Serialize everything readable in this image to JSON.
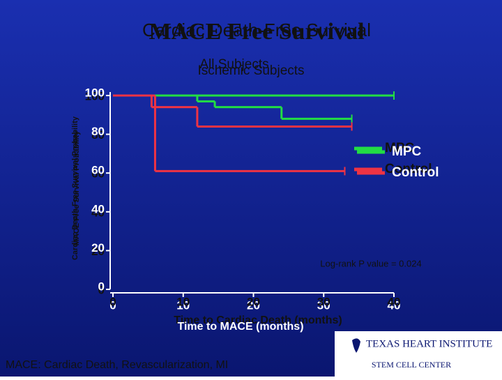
{
  "chart_data": {
    "type": "step",
    "title": "MACE Free Survival",
    "title_alt": "Cardiac Death-Free Survival",
    "subtitle": "All Subjects",
    "subtitle_alt": "Ischemic Subjects",
    "ylabel": "MACE Free Survival Probability",
    "ylabel_alt": "Cardiac Death Free Survival Probability",
    "xlabel": "Time to MACE (months)",
    "xlabel_alt": "Time to Cardiac Death (months)",
    "annotation": "Log-rank P value = 0.024",
    "footnote": "MACE: Cardiac Death, Revascularization, MI",
    "logo": "TEXAS HEART INSTITUTE",
    "logo_sub": "STEM CELL CENTER",
    "xlim": [
      0,
      40
    ],
    "xticks": [
      0,
      10,
      20,
      30,
      40
    ],
    "ylim": [
      0,
      100
    ],
    "yticks": [
      0,
      20,
      40,
      60,
      80,
      100
    ],
    "series": [
      {
        "name": "MPC",
        "color": "#22dd44",
        "x": [
          0,
          12,
          14.5,
          24,
          34
        ],
        "values": [
          100,
          97,
          94,
          88,
          88
        ]
      },
      {
        "name": "MPC",
        "color": "#22dd44",
        "x": [
          0,
          40
        ],
        "values": [
          100,
          100
        ]
      },
      {
        "name": "Control",
        "color": "#ee3344",
        "x": [
          0,
          5.5,
          12,
          34
        ],
        "values": [
          100,
          94,
          84,
          84
        ]
      },
      {
        "name": "Control",
        "color": "#ee3344",
        "x": [
          0,
          6,
          33
        ],
        "values": [
          100,
          61,
          61
        ]
      }
    ]
  }
}
